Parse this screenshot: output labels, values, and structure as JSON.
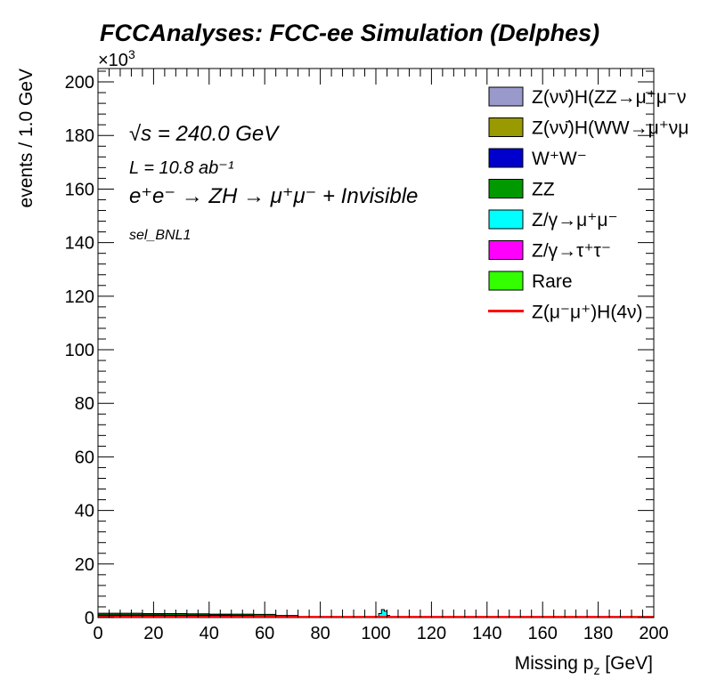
{
  "chart_data": {
    "type": "histogram",
    "title": "FCCAnalyses: FCC-ee Simulation (Delphes)",
    "xlabel": "Missing p_z [GeV]",
    "ylabel": "events / 1.0 GeV",
    "y_multiplier": "×10^3",
    "xlim": [
      0,
      200
    ],
    "ylim": [
      0,
      205
    ],
    "x_ticks": [
      0,
      20,
      40,
      60,
      80,
      100,
      120,
      140,
      160,
      180,
      200
    ],
    "y_ticks": [
      0,
      20,
      40,
      60,
      80,
      100,
      120,
      140,
      160,
      180,
      200
    ],
    "grid": false,
    "legend_position": "top-right",
    "annotations": {
      "energy": "√s = 240.0 GeV",
      "lumi": "L = 10.8 ab⁻¹",
      "process": "e⁺e⁻ → ZH → μ⁺μ⁻ + Invisible",
      "selection": "sel_BNL1"
    },
    "legend": [
      {
        "label": "Z(νν̄)H(ZZ→μ⁺μ⁻ν",
        "color": "#9999cc",
        "style": "fill"
      },
      {
        "label": "Z(νν̄)H(WW→μ⁺νμ",
        "color": "#999900",
        "style": "fill"
      },
      {
        "label": "W⁺W⁻",
        "color": "#0000cc",
        "style": "fill"
      },
      {
        "label": "ZZ",
        "color": "#009900",
        "style": "fill"
      },
      {
        "label": "Z/γ→μ⁺μ⁻",
        "color": "#00ffff",
        "style": "fill"
      },
      {
        "label": "Z/γ→τ⁺τ⁻",
        "color": "#ff00ff",
        "style": "fill"
      },
      {
        "label": "Rare",
        "color": "#33ff00",
        "style": "fill"
      },
      {
        "label": "Z(μ⁻μ⁺)H(4ν)",
        "color": "#ff0000",
        "style": "line"
      }
    ],
    "series": [
      {
        "name": "W⁺W⁻",
        "color": "#0000cc",
        "x_range": [
          0,
          80
        ],
        "y_thousands": [
          1.0,
          1.0,
          1.0,
          0.9,
          0.9,
          0.9,
          0.8,
          0.6,
          0.4,
          0.0
        ]
      },
      {
        "name": "ZZ",
        "color": "#009900",
        "x_range": [
          0,
          80
        ],
        "y_thousands": [
          1.6,
          1.6,
          1.5,
          1.5,
          1.4,
          1.3,
          1.3,
          1.2,
          0.8,
          0.0
        ]
      },
      {
        "name": "Z/γ→μ⁺μ⁻",
        "color": "#00ffff",
        "x_range": [
          100,
          106
        ],
        "y_thousands": [
          0.3,
          1.5,
          3.0,
          2.4,
          0.8,
          0.1
        ]
      },
      {
        "name": "Z(μ⁻μ⁺)H(4ν)",
        "color": "#ff0000",
        "x_range": [
          0,
          200
        ],
        "y_thousands": [
          0.3
        ]
      }
    ]
  }
}
